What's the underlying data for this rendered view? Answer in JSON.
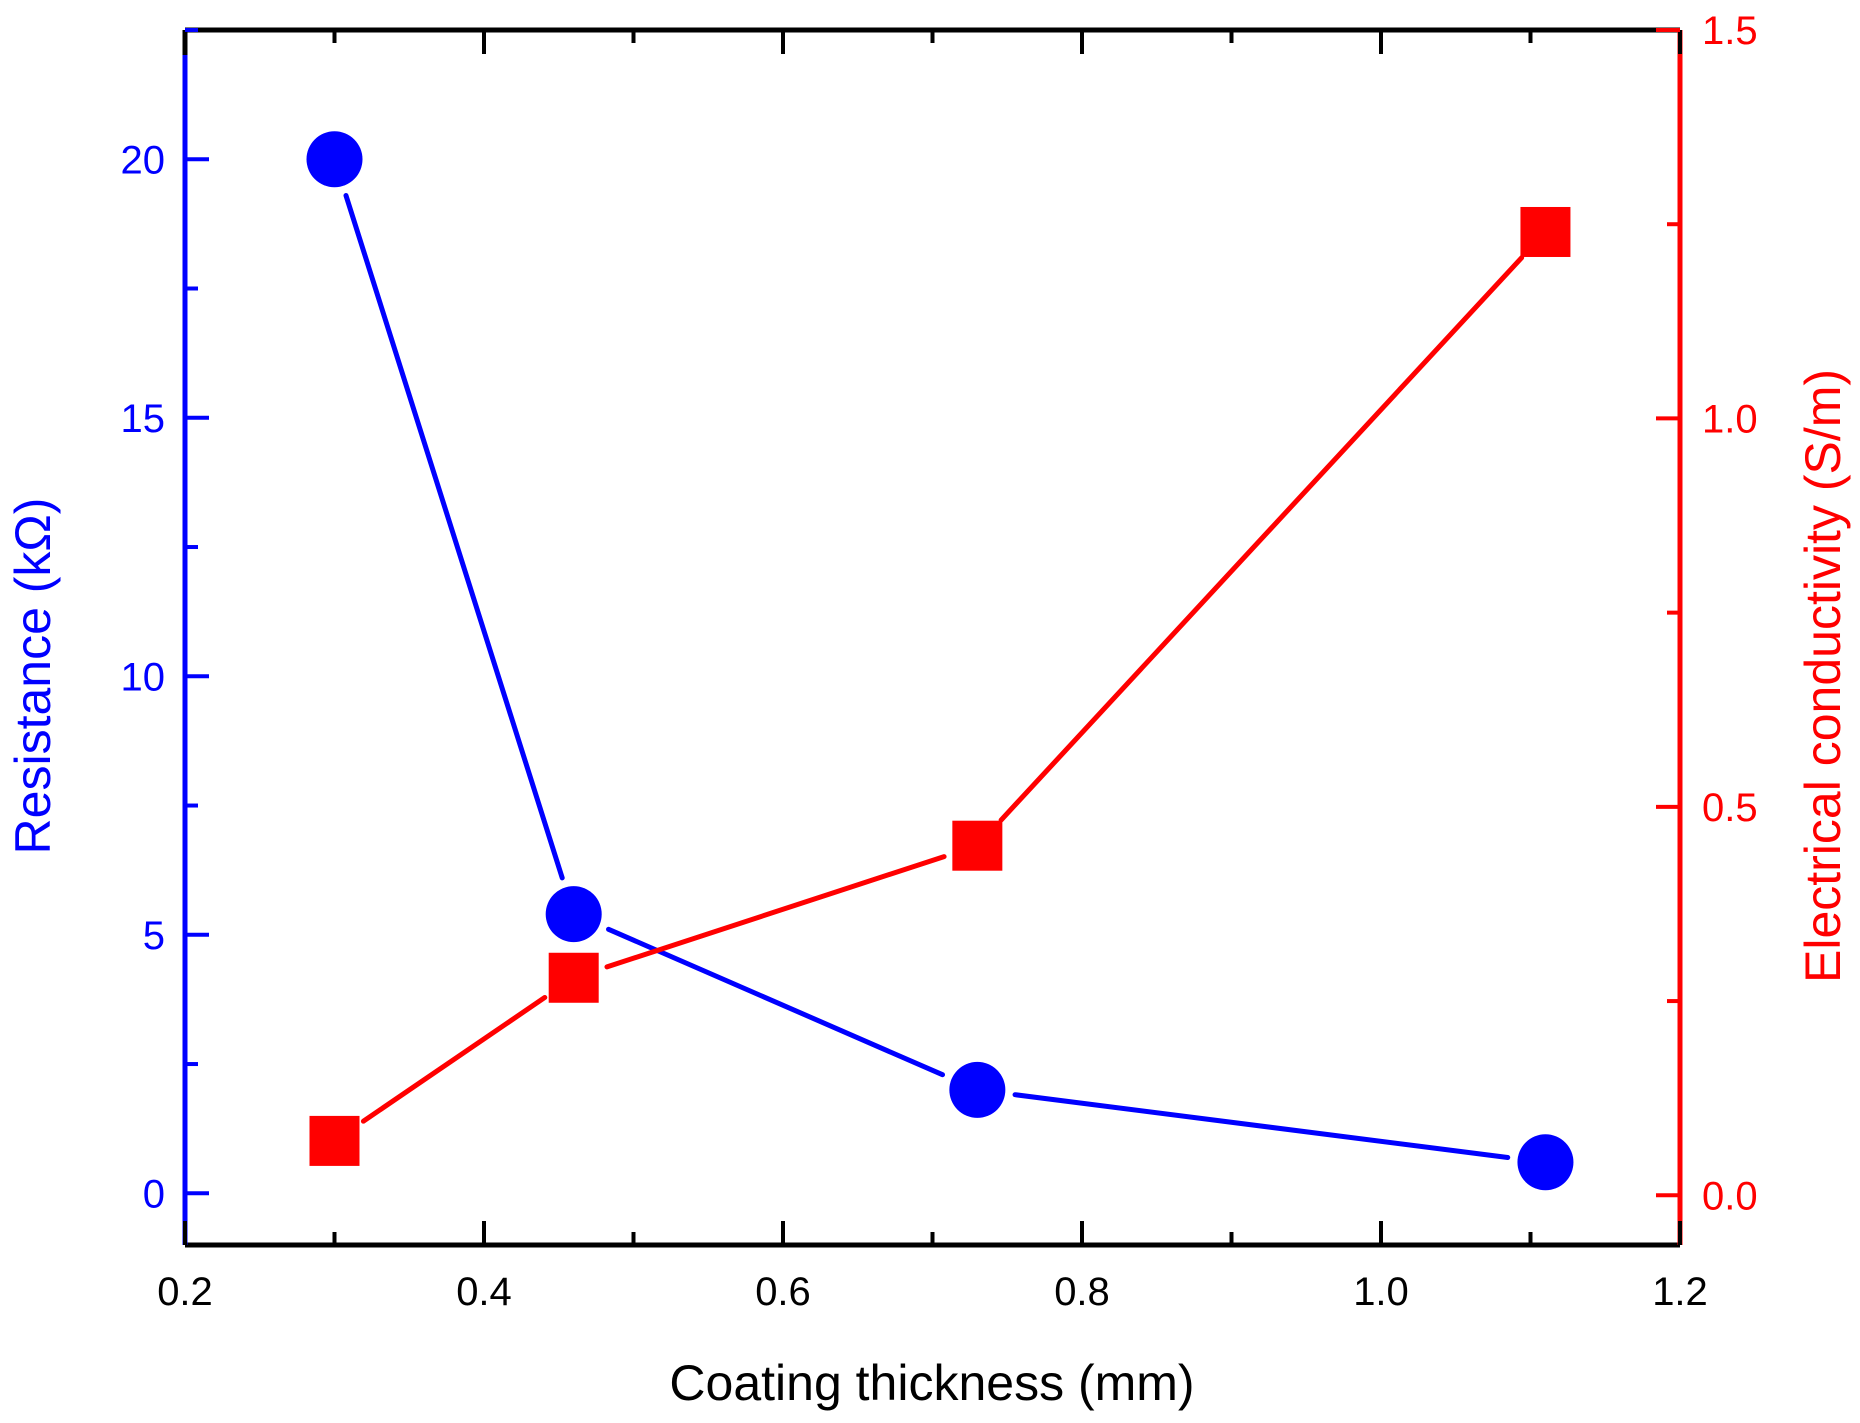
{
  "chart_data": {
    "type": "line",
    "title": "",
    "xlabel": "Coating thickness (mm)",
    "ylabel": "Resistance (kΩ)",
    "y2label": "Electrical conductivity (S/m)",
    "xlim": [
      0.2,
      1.2
    ],
    "ylim": [
      -1,
      22.5
    ],
    "y2lim": [
      -0.064,
      1.5
    ],
    "x_ticks": [
      0.2,
      0.4,
      0.6,
      0.8,
      1.0,
      1.2
    ],
    "x_tick_labels": [
      "0.2",
      "0.4",
      "0.6",
      "0.8",
      "1.0",
      "1.2"
    ],
    "y_ticks": [
      0,
      5,
      10,
      15,
      20
    ],
    "y_tick_labels": [
      "0",
      "5",
      "10",
      "15",
      "20"
    ],
    "y2_ticks": [
      0.0,
      0.5,
      1.0,
      1.5
    ],
    "y2_tick_labels": [
      "0.0",
      "0.5",
      "1.0",
      "1.5"
    ],
    "grid": false,
    "legend": "none",
    "series": [
      {
        "name": "Resistance",
        "axis": "left",
        "marker": "circle",
        "color": "#0000ff",
        "x": [
          0.3,
          0.46,
          0.73,
          1.11
        ],
        "values": [
          20.0,
          5.4,
          2.0,
          0.6
        ]
      },
      {
        "name": "Electrical conductivity",
        "axis": "right",
        "marker": "square",
        "color": "#ff0000",
        "x": [
          0.3,
          0.46,
          0.73,
          1.11
        ],
        "values": [
          0.07,
          0.28,
          0.45,
          1.24
        ]
      }
    ],
    "colors": {
      "left_axis": "#0000ff",
      "right_axis": "#ff0000",
      "frame": "#000000"
    }
  }
}
